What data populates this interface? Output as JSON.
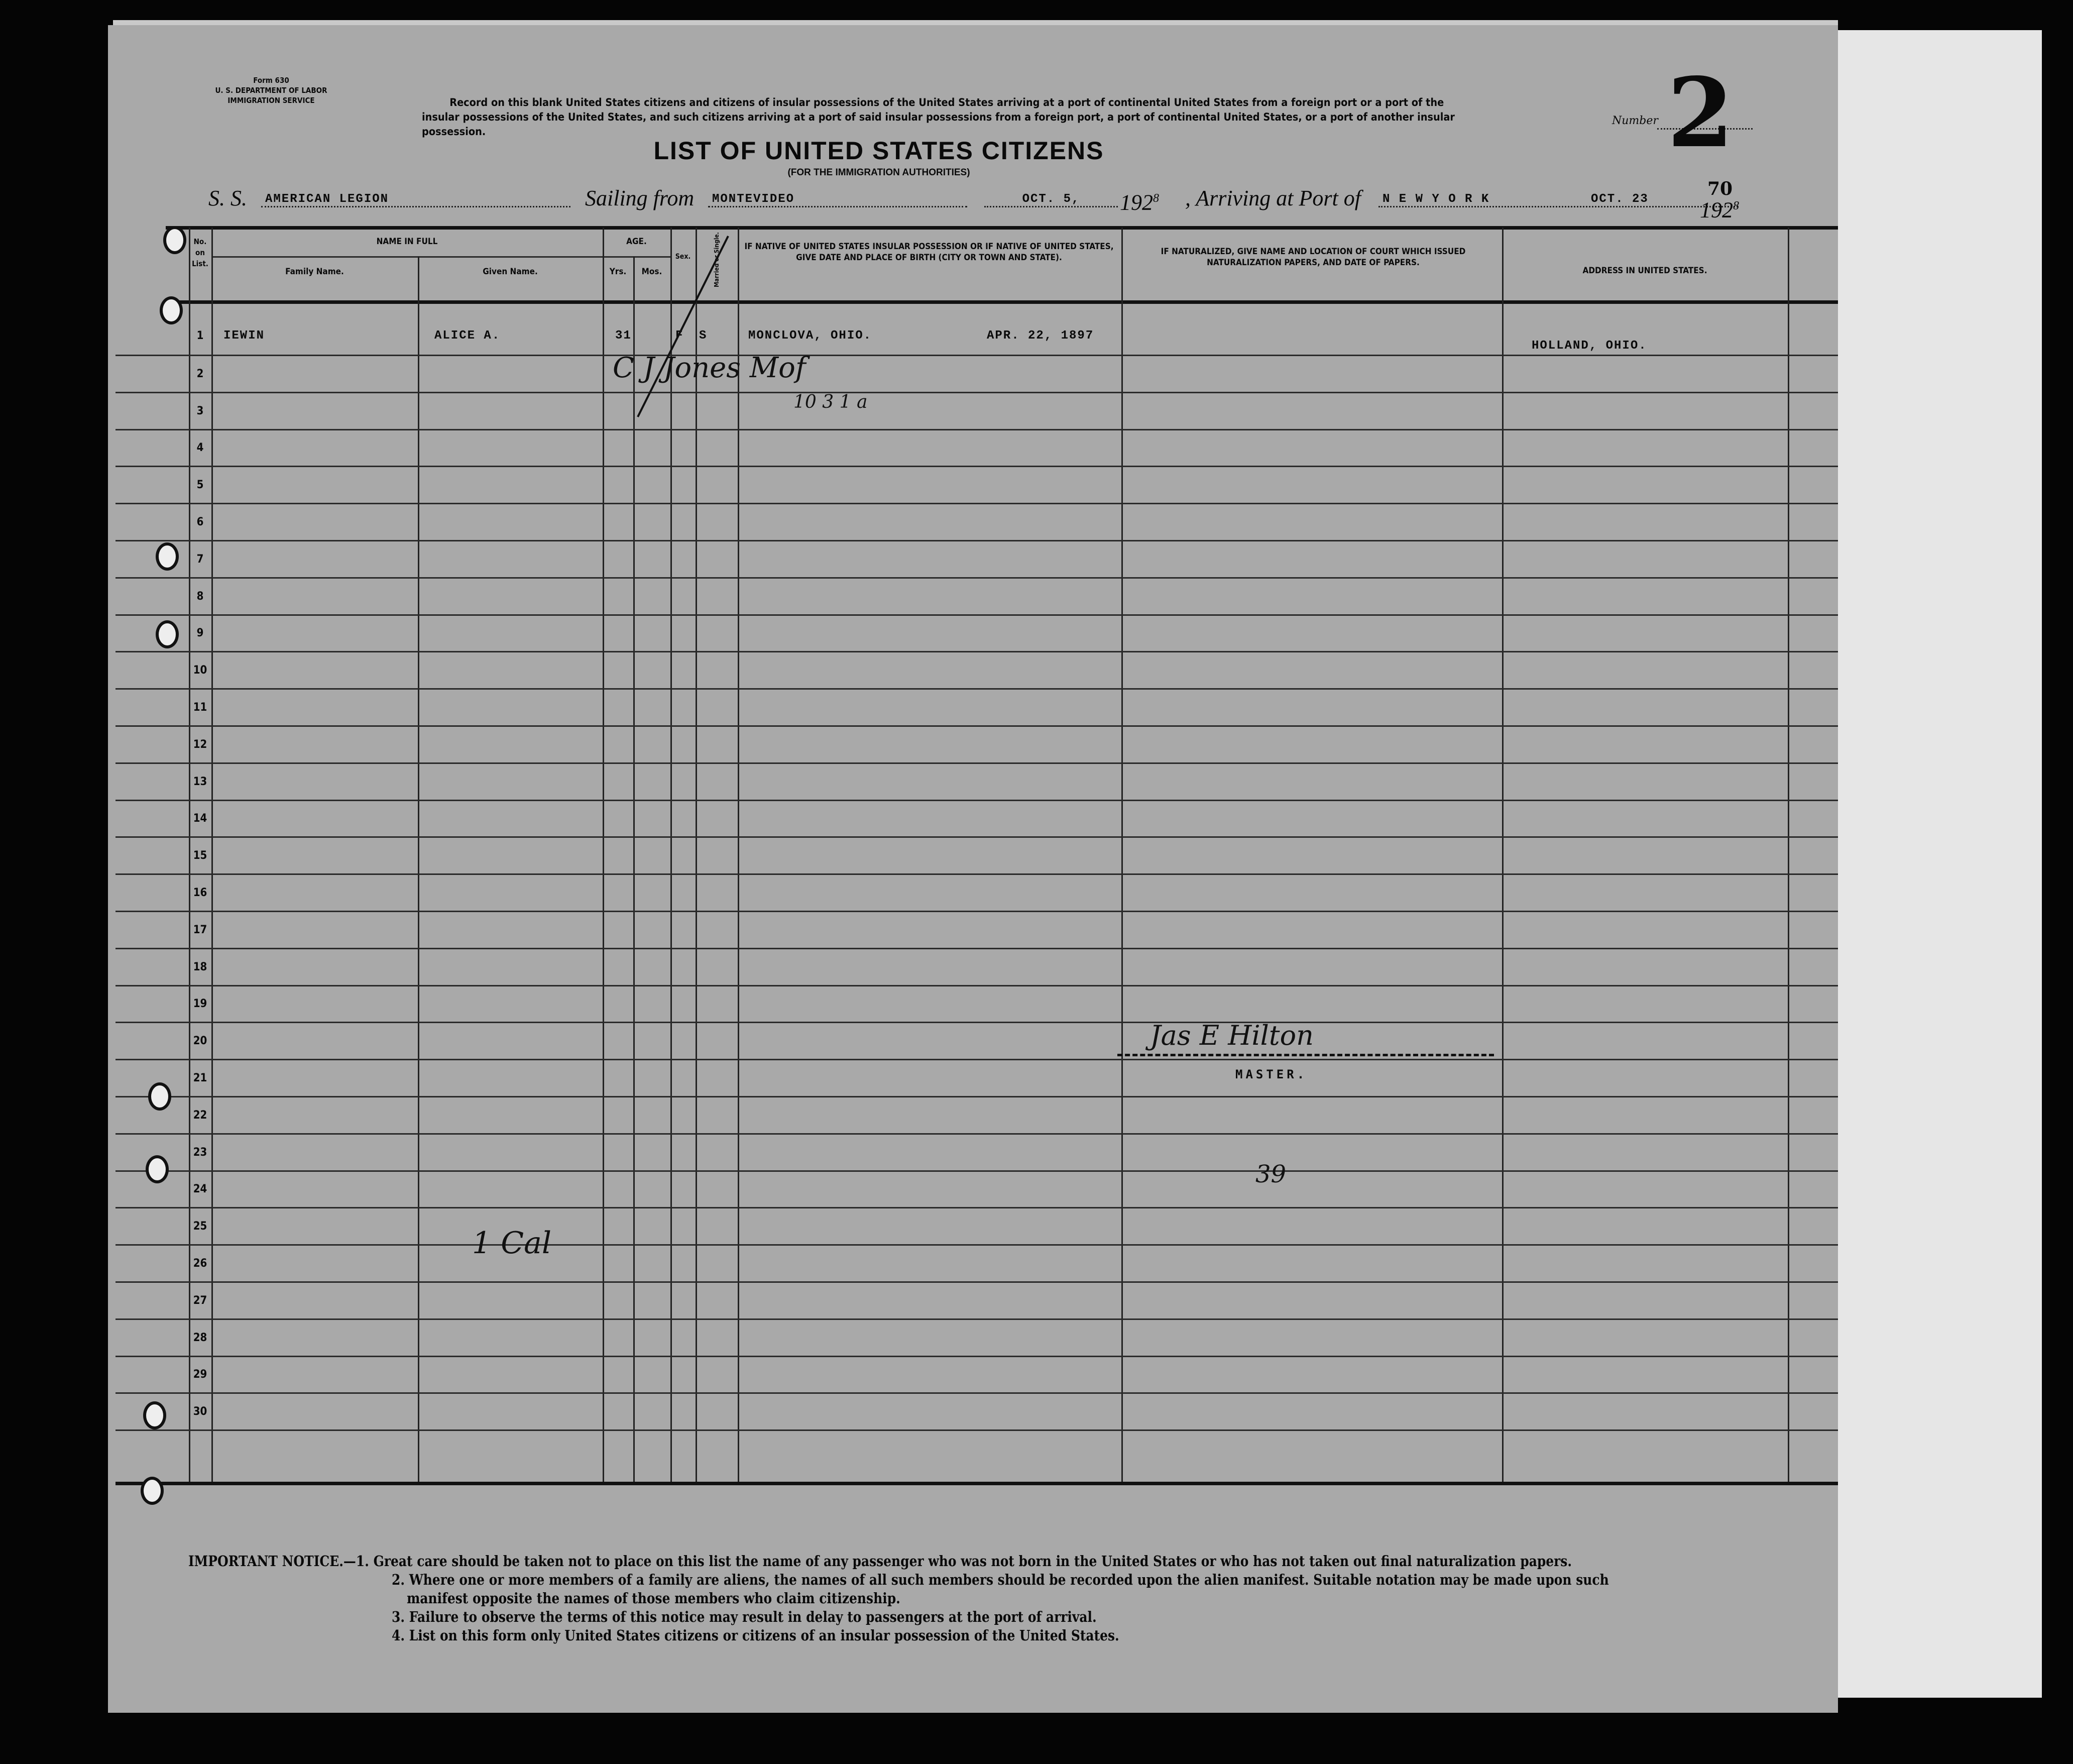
{
  "form_id": [
    "Form 630",
    "U. S. DEPARTMENT OF LABOR",
    "IMMIGRATION SERVICE"
  ],
  "record_text": "Record on this blank United States citizens and citizens of insular possessions of the United States arriving at a port of continental United States from a foreign port or a port of the insular possessions of the United States, and such citizens arriving at a port of said insular possessions from a foreign port, a port of continental United States, or a port of another insular possession.",
  "number_label": "Number",
  "number_value": "2",
  "title": "LIST OF UNITED STATES CITIZENS",
  "subtitle": "(FOR THE IMMIGRATION AUTHORITIES)",
  "voyage": {
    "ss_label": "S. S.",
    "ship": "AMERICAN LEGION",
    "sailing_label": "Sailing from",
    "sailing_port": "MONTEVIDEO",
    "sailing_date": "OCT. 5,",
    "sailing_year": "192",
    "sailing_year_suffix": "8",
    "arriving_label": ", Arriving at Port of",
    "arrival_port": "N E W   Y O R K",
    "arrival_date": "OCT. 23",
    "arrival_year": "192",
    "arrival_year_suffix": "8",
    "arrival_note": "70"
  },
  "columns": {
    "no": "No. on List.",
    "name_in_full": "NAME IN FULL",
    "family_name": "Family Name.",
    "given_name": "Given Name.",
    "age": "AGE.",
    "yrs": "Yrs.",
    "mos": "Mos.",
    "sex": "Sex.",
    "married": "Married or Single.",
    "birth": "IF NATIVE OF UNITED STATES INSULAR POSSESSION OR IF NATIVE OF UNITED STATES, GIVE DATE AND PLACE OF BIRTH (CITY OR TOWN AND STATE).",
    "naturalized": "IF NATURALIZED, GIVE NAME AND LOCATION OF COURT WHICH ISSUED NATURALIZATION PAPERS, AND DATE OF PAPERS.",
    "address": "ADDRESS IN UNITED STATES."
  },
  "row_numbers": [
    "1",
    "2",
    "3",
    "4",
    "5",
    "6",
    "7",
    "8",
    "9",
    "10",
    "11",
    "12",
    "13",
    "14",
    "15",
    "16",
    "17",
    "18",
    "19",
    "20",
    "21",
    "22",
    "23",
    "24",
    "25",
    "26",
    "27",
    "28",
    "29",
    "30"
  ],
  "entries": [
    {
      "family_name": "IEWIN",
      "given_name": "ALICE A.",
      "age_yrs": "31",
      "sex": "F",
      "married": "S",
      "birth_place": "MONCLOVA, OHIO.",
      "birth_date": "APR. 22, 1897",
      "address": "HOLLAND, OHIO."
    }
  ],
  "annotations": {
    "handwritten_row2": "C J Jones Mof",
    "handwritten_row3": "10 3 1 a",
    "master_signature": "Jas E Hilton",
    "master_label": "MASTER.",
    "page_number": "39",
    "handwritten_row26": "1 Cal"
  },
  "notice": {
    "label": "IMPORTANT NOTICE.—",
    "items": [
      "1. Great care should be taken not to place on this list the name of any passenger who was not born in the United States or who has not taken out final naturalization papers.",
      "2. Where one or more members of a family are aliens, the names of all such members should be recorded upon the alien manifest.   Suitable notation may be made upon such",
      "manifest opposite the names of those members who claim citizenship.",
      "3. Failure to observe the terms of this notice may result in delay to passengers at the port of arrival.",
      "4. List on this form only United States citizens or citizens of an insular possession of the United States."
    ]
  },
  "colors": {
    "paper": "#a9a9a9",
    "ink": "#0a0a0a",
    "background": "#050505"
  }
}
